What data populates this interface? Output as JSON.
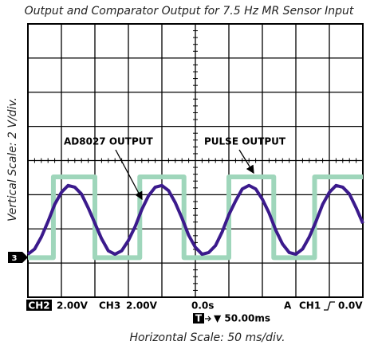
{
  "chart_data": {
    "type": "line",
    "title": "Output and Comparator Output for 7.5 Hz MR Sensor Input",
    "y_label": "Vertical Scale: 2 V/div.",
    "x_label": "Horizontal Scale: 50 ms/div.",
    "annotations": [
      "AD8027 OUTPUT",
      "PULSE OUTPUT"
    ],
    "ground_marker": "3",
    "status": {
      "ch2": "CH2",
      "ch2_scale": "2.00V",
      "ch3": "CH3",
      "ch3_scale": "2.00V",
      "time_offset": "0.0s",
      "trigger_mode": "A",
      "trigger_source": "CH1",
      "trigger_level": "0.0V",
      "timebase_symbol": "T",
      "timebase": "▼ 50.00ms"
    },
    "xlim": [
      0,
      500
    ],
    "ylim": [
      -2.3,
      13.6
    ],
    "series": [
      {
        "name": "AD8027 OUTPUT",
        "color": "#3b1a8c",
        "x": [
          0,
          10,
          20,
          30,
          40,
          50,
          60,
          70,
          80,
          90,
          100,
          110,
          120,
          130,
          140,
          150,
          160,
          170,
          180,
          190,
          200,
          210,
          220,
          230,
          240,
          250,
          260,
          270,
          280,
          290,
          300,
          310,
          320,
          330,
          340,
          350,
          360,
          370,
          380,
          390,
          400,
          410,
          420,
          430,
          440,
          450,
          460,
          470,
          480,
          490,
          500
        ],
        "values": [
          0.2,
          0.5,
          1.2,
          2.1,
          3.1,
          3.8,
          4.2,
          4.1,
          3.7,
          2.9,
          2.0,
          1.1,
          0.4,
          0.2,
          0.4,
          1.0,
          1.8,
          2.8,
          3.6,
          4.1,
          4.2,
          3.9,
          3.2,
          2.3,
          1.3,
          0.6,
          0.2,
          0.3,
          0.7,
          1.5,
          2.5,
          3.3,
          4.0,
          4.2,
          4.0,
          3.4,
          2.6,
          1.6,
          0.8,
          0.3,
          0.2,
          0.5,
          1.2,
          2.1,
          3.1,
          3.8,
          4.2,
          4.1,
          3.7,
          2.9,
          2.0
        ]
      },
      {
        "name": "PULSE OUTPUT",
        "color": "#9fd6bb",
        "x": [
          0,
          38,
          38,
          100,
          100,
          167,
          167,
          233,
          233,
          300,
          300,
          367,
          367,
          428,
          428,
          500
        ],
        "values": [
          0,
          0,
          4.7,
          4.7,
          0,
          0,
          4.7,
          4.7,
          0,
          0,
          4.7,
          4.7,
          0,
          0,
          4.7,
          4.7
        ]
      }
    ]
  }
}
